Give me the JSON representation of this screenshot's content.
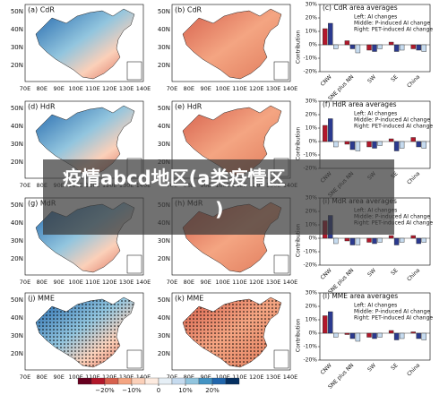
{
  "maps": [
    {
      "label": "(a) CdR"
    },
    {
      "label": "(b) CdR"
    },
    {
      "label": "(d) HdR"
    },
    {
      "label": "(e) HdR"
    },
    {
      "label": "(g) MdR"
    },
    {
      "label": "(h) MdR"
    },
    {
      "label": "(j) MME"
    },
    {
      "label": "(k) MME"
    }
  ],
  "map_lat_ticks": [
    "50N",
    "40N",
    "30N",
    "20N"
  ],
  "map_lon_ticks": [
    "70E",
    "80E",
    "90E",
    "100E",
    "110E",
    "120E",
    "130E",
    "140E"
  ],
  "colorbar": {
    "lim": [
      -30,
      30
    ],
    "ticks": [
      {
        "value": -20,
        "label": "−20%"
      },
      {
        "value": -10,
        "label": "−10%"
      },
      0,
      {
        "value": 10,
        "label": "10%"
      },
      {
        "value": 20,
        "label": "20%"
      }
    ],
    "colors": [
      "#67001f",
      "#b2182b",
      "#d6604d",
      "#f4a582",
      "#fbd0b9",
      "#fdebe0",
      "#e6eff6",
      "#c6dbef",
      "#92c5de",
      "#4393c3",
      "#2166ac",
      "#053061"
    ]
  },
  "overlay": {
    "line1": "疫情abcd地区(a类疫情区",
    "line2": ")"
  },
  "chart_data": [
    {
      "type": "bar",
      "title": "(c) CdR area averages",
      "y_label": "Contribution",
      "categories": [
        "CNW",
        "SNE plus NN",
        "SW",
        "SE",
        "China"
      ],
      "series": [
        {
          "name": "Left: AI changes",
          "color": "#b2182b",
          "values": [
            12,
            3,
            -4,
            2,
            -3
          ]
        },
        {
          "name": "Middle: P-induced AI change",
          "color": "#2b3a8f",
          "values": [
            16,
            -3,
            -5,
            -5,
            -4
          ]
        },
        {
          "name": "Right: PET-induced AI change",
          "color": "#c6dbef",
          "values": [
            -3,
            -6,
            -3,
            -4,
            -5
          ]
        }
      ],
      "ylim": [
        -20,
        30
      ],
      "yticks": [
        {
          "value": 30,
          "label": "30%"
        },
        {
          "value": 20,
          "label": "20%"
        },
        {
          "value": 10,
          "label": "10%"
        },
        {
          "value": 0,
          "label": "0%"
        },
        {
          "value": -10,
          "label": "-10%"
        },
        {
          "value": -20,
          "label": "-20%"
        }
      ]
    },
    {
      "type": "bar",
      "title": "(f) HdR area averages",
      "y_label": "Contribution",
      "categories": [
        "CNW",
        "SNE plus NN",
        "SW",
        "SE",
        "China"
      ],
      "series": [
        {
          "name": "Left: AI changes",
          "color": "#b2182b",
          "values": [
            12,
            -2,
            -4,
            2,
            3
          ]
        },
        {
          "name": "Middle: P-induced AI change",
          "color": "#2b3a8f",
          "values": [
            17,
            -6,
            -5,
            -7,
            -4
          ]
        },
        {
          "name": "Right: PET-induced AI change",
          "color": "#c6dbef",
          "values": [
            -4,
            -7,
            -3,
            -5,
            -5
          ]
        }
      ],
      "ylim": [
        -20,
        30
      ],
      "yticks": [
        {
          "value": 30,
          "label": "30%"
        },
        {
          "value": 20,
          "label": "20%"
        },
        {
          "value": 10,
          "label": "10%"
        },
        {
          "value": 0,
          "label": "0%"
        },
        {
          "value": -10,
          "label": "-10%"
        },
        {
          "value": -20,
          "label": "-20%"
        }
      ]
    },
    {
      "type": "bar",
      "title": "(i) MdR area averages",
      "y_label": "Contribution",
      "categories": [
        "CNW",
        "SNE plus NN",
        "SW",
        "SE",
        "China"
      ],
      "series": [
        {
          "name": "Left: AI changes",
          "color": "#b2182b",
          "values": [
            13,
            -2,
            -3,
            2,
            2
          ]
        },
        {
          "name": "Middle: P-induced AI change",
          "color": "#2b3a8f",
          "values": [
            17,
            -5,
            -4,
            -5,
            -4
          ]
        },
        {
          "name": "Right: PET-induced AI change",
          "color": "#c6dbef",
          "values": [
            -4,
            -5,
            -3,
            -3,
            -3
          ]
        }
      ],
      "ylim": [
        -20,
        30
      ],
      "yticks": [
        {
          "value": 30,
          "label": "30%"
        },
        {
          "value": 20,
          "label": "20%"
        },
        {
          "value": 10,
          "label": "10%"
        },
        {
          "value": 0,
          "label": "0%"
        },
        {
          "value": -10,
          "label": "-10%"
        },
        {
          "value": -20,
          "label": "-20%"
        }
      ]
    },
    {
      "type": "bar",
      "title": "(l) MME area averages",
      "y_label": "Contribution",
      "categories": [
        "CNW",
        "SNE plus NN",
        "SW",
        "SE",
        "China"
      ],
      "series": [
        {
          "name": "Left: AI changes",
          "color": "#b2182b",
          "values": [
            13,
            -1,
            -3,
            2,
            1
          ]
        },
        {
          "name": "Middle: P-induced AI change",
          "color": "#2b3a8f",
          "values": [
            16,
            -4,
            -4,
            -5,
            -4
          ]
        },
        {
          "name": "Right: PET-induced AI change",
          "color": "#c6dbef",
          "values": [
            -3,
            -6,
            -3,
            -4,
            -5
          ]
        }
      ],
      "ylim": [
        -20,
        30
      ],
      "yticks": [
        {
          "value": 30,
          "label": "30%"
        },
        {
          "value": 20,
          "label": "20%"
        },
        {
          "value": 10,
          "label": "10%"
        },
        {
          "value": 0,
          "label": "0%"
        },
        {
          "value": -10,
          "label": "-10%"
        },
        {
          "value": -20,
          "label": "-20%"
        }
      ]
    }
  ]
}
